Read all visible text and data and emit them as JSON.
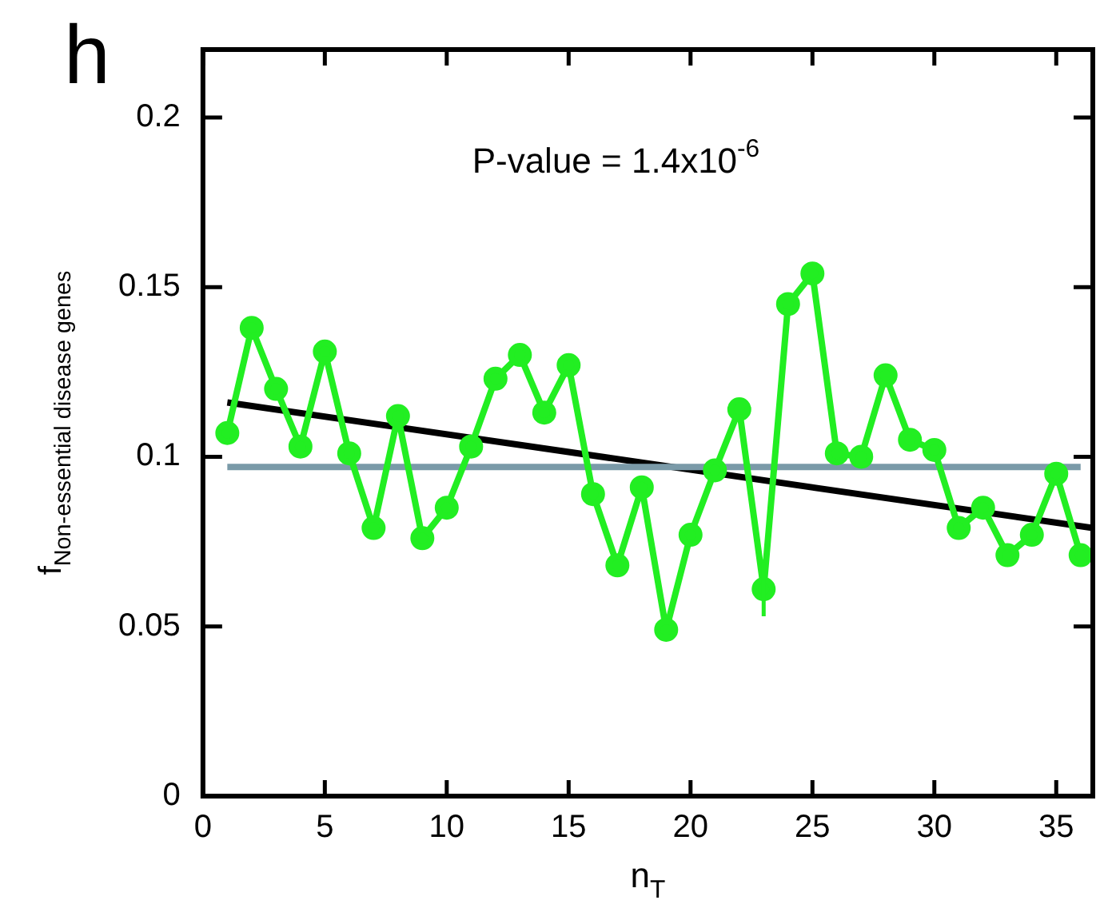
{
  "chart_data": {
    "type": "line",
    "xlabel": "n$_{T}$",
    "ylabel": "f$_{Non-essential disease genes}$",
    "annotations": [
      "h",
      "P-value = 1.4x10$^{-6}$"
    ],
    "xlim": [
      0,
      36.5
    ],
    "xticks": [
      0,
      5,
      10,
      15,
      20,
      25,
      30,
      35
    ],
    "ylim": [
      0,
      0.22
    ],
    "yticks": [
      0,
      0.05,
      0.1,
      0.15,
      0.2
    ],
    "grid": false,
    "legend": false,
    "series": [
      {
        "color": "#22ee22",
        "marker": "circle",
        "x": [
          1,
          2,
          3,
          4,
          5,
          6,
          7,
          8,
          9,
          10,
          11,
          12,
          13,
          14,
          15,
          16,
          17,
          18,
          19,
          20,
          21,
          22,
          23,
          24,
          25,
          26,
          27,
          28,
          29,
          30,
          31,
          32,
          33,
          34,
          35,
          36
        ],
        "values": [
          0.107,
          0.138,
          0.12,
          0.103,
          0.131,
          0.101,
          0.079,
          0.112,
          0.076,
          0.085,
          0.103,
          0.123,
          0.13,
          0.113,
          0.127,
          0.089,
          0.068,
          0.091,
          0.049,
          0.077,
          0.096,
          0.114,
          0.061,
          0.145,
          0.154,
          0.101,
          0.1,
          0.124,
          0.105,
          0.102,
          0.079,
          0.085,
          0.071,
          0.077,
          0.095,
          0.071
        ],
        "errors": [
          null,
          null,
          null,
          null,
          null,
          null,
          null,
          null,
          null,
          null,
          null,
          null,
          null,
          null,
          null,
          null,
          null,
          null,
          null,
          null,
          null,
          null,
          [
            0.053,
            0.069
          ],
          null,
          null,
          null,
          null,
          null,
          null,
          null,
          null,
          null,
          null,
          null,
          null,
          null
        ]
      },
      {
        "color": "#7a9aa8",
        "marker": "none",
        "x": [
          1,
          36
        ],
        "values": [
          0.097,
          0.097
        ]
      },
      {
        "color": "#000000",
        "marker": "none",
        "x": [
          1,
          36.5
        ],
        "values": [
          0.116,
          0.079
        ]
      }
    ]
  }
}
